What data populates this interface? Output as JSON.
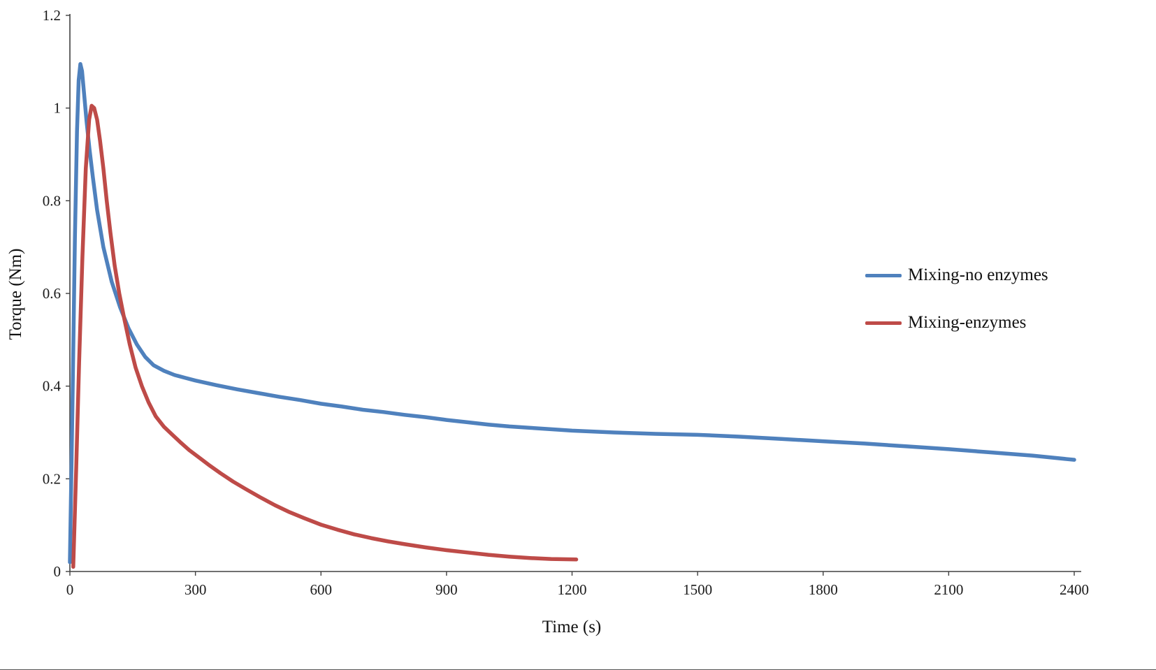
{
  "chart_data": {
    "type": "line",
    "title": "",
    "xlabel": "Time (s)",
    "ylabel": "Torque (Nm)",
    "xlim": [
      0,
      2400
    ],
    "ylim": [
      0,
      1.2
    ],
    "x_ticks": [
      "0",
      "300",
      "600",
      "900",
      "1200",
      "1500",
      "1800",
      "2100",
      "2400"
    ],
    "y_ticks": [
      "0",
      "0.2",
      "0.4",
      "0.6",
      "0.8",
      "1",
      "1.2"
    ],
    "grid": false,
    "legend_position": "right-middle",
    "axis_color": "#404040",
    "tick_text_color": "#1a1a1a",
    "series": [
      {
        "name": "Mixing-no enzymes",
        "color": "#4F81BD",
        "x": [
          0,
          6,
          12,
          17,
          21,
          25,
          29,
          34,
          40,
          47,
          55,
          65,
          80,
          100,
          120,
          140,
          160,
          180,
          200,
          225,
          250,
          275,
          300,
          350,
          400,
          450,
          500,
          550,
          600,
          650,
          700,
          750,
          800,
          850,
          900,
          950,
          1000,
          1050,
          1100,
          1150,
          1200,
          1300,
          1400,
          1500,
          1600,
          1700,
          1800,
          1900,
          2000,
          2100,
          2200,
          2300,
          2400
        ],
        "y": [
          0.02,
          0.35,
          0.72,
          0.95,
          1.06,
          1.095,
          1.08,
          1.03,
          0.97,
          0.91,
          0.85,
          0.78,
          0.7,
          0.625,
          0.57,
          0.525,
          0.49,
          0.463,
          0.445,
          0.433,
          0.424,
          0.418,
          0.412,
          0.402,
          0.393,
          0.385,
          0.377,
          0.37,
          0.362,
          0.356,
          0.349,
          0.344,
          0.338,
          0.333,
          0.327,
          0.322,
          0.317,
          0.313,
          0.31,
          0.307,
          0.304,
          0.3,
          0.297,
          0.295,
          0.291,
          0.286,
          0.281,
          0.276,
          0.27,
          0.264,
          0.257,
          0.25,
          0.241
        ]
      },
      {
        "name": "Mixing-enzymes",
        "color": "#BE4B48",
        "x": [
          8,
          15,
          22,
          30,
          38,
          46,
          52,
          58,
          65,
          72,
          80,
          88,
          97,
          107,
          118,
          130,
          143,
          157,
          172,
          188,
          205,
          225,
          245,
          265,
          285,
          310,
          335,
          360,
          390,
          420,
          455,
          490,
          525,
          560,
          600,
          640,
          680,
          720,
          760,
          800,
          850,
          900,
          950,
          1000,
          1050,
          1100,
          1150,
          1210
        ],
        "y": [
          0.01,
          0.22,
          0.45,
          0.68,
          0.87,
          0.975,
          1.005,
          1.0,
          0.975,
          0.93,
          0.87,
          0.8,
          0.73,
          0.66,
          0.6,
          0.545,
          0.49,
          0.44,
          0.4,
          0.365,
          0.335,
          0.312,
          0.295,
          0.278,
          0.262,
          0.245,
          0.228,
          0.212,
          0.194,
          0.178,
          0.16,
          0.143,
          0.128,
          0.115,
          0.101,
          0.09,
          0.08,
          0.072,
          0.065,
          0.059,
          0.052,
          0.046,
          0.041,
          0.036,
          0.032,
          0.029,
          0.027,
          0.026
        ]
      }
    ]
  }
}
